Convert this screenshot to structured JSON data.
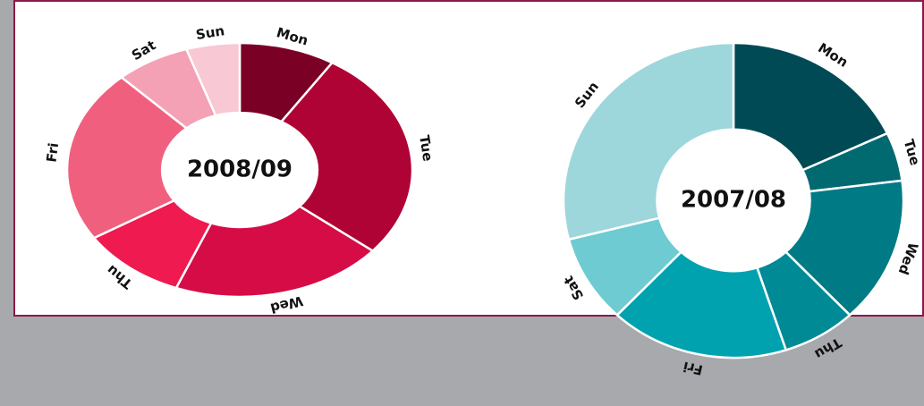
{
  "chart_data": [
    {
      "type": "pie",
      "title": "2008/09",
      "categories": [
        "Mon",
        "Tue",
        "Wed",
        "Thu",
        "Fri",
        "Sat",
        "Sun"
      ],
      "values": [
        9,
        27,
        20,
        10,
        22,
        7,
        5
      ],
      "colors": [
        "#7a0026",
        "#b00335",
        "#d50c45",
        "#ee1a50",
        "#f0607e",
        "#f4a0b5",
        "#f8c8d4"
      ]
    },
    {
      "type": "pie",
      "title": "2007/08",
      "categories": [
        "Mon",
        "Tue",
        "Wed",
        "Thu",
        "Fri",
        "Sat",
        "Sun"
      ],
      "values": [
        18,
        5,
        15,
        7,
        17,
        9,
        29
      ],
      "colors": [
        "#004a55",
        "#006a70",
        "#007a85",
        "#008a95",
        "#00a2b0",
        "#6ecbd1",
        "#9dd7dc"
      ]
    }
  ]
}
